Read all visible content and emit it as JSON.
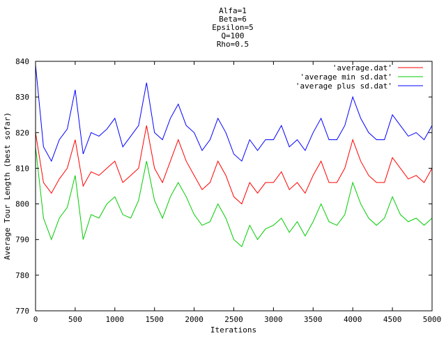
{
  "chart_data": {
    "type": "line",
    "title_lines": [
      "Alfa=1",
      "Beta=6",
      "Epsilon=5",
      "Q=100",
      "Rho=0.5"
    ],
    "xlabel": "Iterations",
    "ylabel": "Average Tour Length (best sofar)",
    "xlim": [
      0,
      5000
    ],
    "ylim": [
      770,
      840
    ],
    "x_ticks": [
      "0",
      "500",
      "1000",
      "1500",
      "2000",
      "2500",
      "3000",
      "3500",
      "4000",
      "4500",
      "5000"
    ],
    "y_ticks": [
      "770",
      "780",
      "790",
      "800",
      "810",
      "820",
      "830",
      "840"
    ],
    "grid": false,
    "legend_position": "top-right",
    "x": [
      0,
      100,
      200,
      300,
      400,
      500,
      600,
      700,
      800,
      900,
      1000,
      1100,
      1200,
      1300,
      1400,
      1500,
      1600,
      1700,
      1800,
      1900,
      2000,
      2100,
      2200,
      2300,
      2400,
      2500,
      2600,
      2700,
      2800,
      2900,
      3000,
      3100,
      3200,
      3300,
      3400,
      3500,
      3600,
      3700,
      3800,
      3900,
      4000,
      4100,
      4200,
      4300,
      4400,
      4500,
      4600,
      4700,
      4800,
      4900,
      5000
    ],
    "series": [
      {
        "name": "'average.dat'",
        "color": "#ff0000",
        "values": [
          820,
          806,
          803,
          807,
          810,
          818,
          805,
          809,
          808,
          810,
          812,
          806,
          808,
          810,
          822,
          810,
          806,
          812,
          818,
          812,
          808,
          804,
          806,
          812,
          808,
          802,
          800,
          806,
          803,
          806,
          806,
          809,
          804,
          806,
          803,
          808,
          812,
          806,
          806,
          810,
          818,
          812,
          808,
          806,
          806,
          813,
          810,
          807,
          808,
          806,
          810
        ]
      },
      {
        "name": "'average min sd.dat'",
        "color": "#00cc00",
        "values": [
          816,
          796,
          790,
          796,
          799,
          808,
          790,
          797,
          796,
          800,
          802,
          797,
          796,
          801,
          812,
          801,
          796,
          802,
          806,
          802,
          797,
          794,
          795,
          800,
          796,
          790,
          788,
          794,
          790,
          793,
          794,
          796,
          792,
          795,
          791,
          795,
          800,
          795,
          794,
          797,
          806,
          800,
          796,
          794,
          796,
          802,
          797,
          795,
          796,
          794,
          796
        ]
      },
      {
        "name": "'average plus sd.dat'",
        "color": "#0000ff",
        "values": [
          839,
          816,
          812,
          818,
          821,
          832,
          814,
          820,
          819,
          821,
          824,
          816,
          819,
          822,
          834,
          820,
          818,
          824,
          828,
          822,
          820,
          815,
          818,
          824,
          820,
          814,
          812,
          818,
          815,
          818,
          818,
          822,
          816,
          818,
          815,
          820,
          824,
          818,
          818,
          822,
          830,
          824,
          820,
          818,
          818,
          825,
          822,
          819,
          820,
          818,
          822
        ]
      }
    ]
  }
}
